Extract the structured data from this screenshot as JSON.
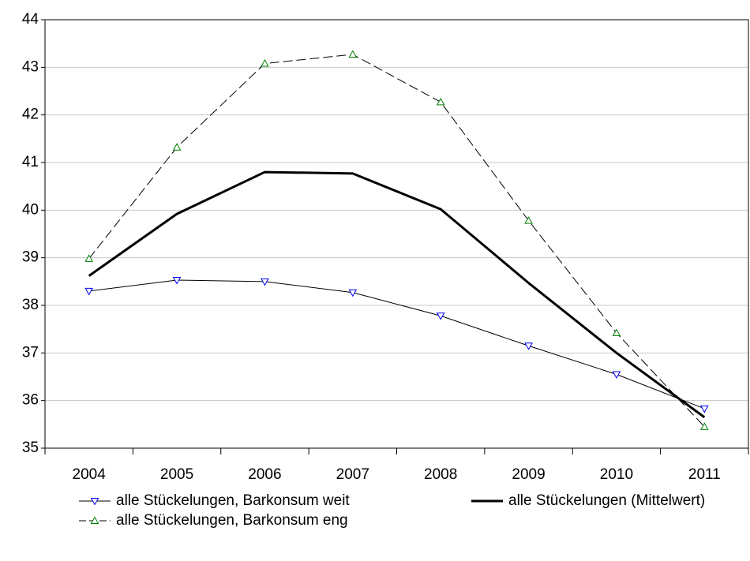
{
  "chart_data": {
    "type": "line",
    "categories": [
      "2004",
      "2005",
      "2006",
      "2007",
      "2008",
      "2009",
      "2010",
      "2011"
    ],
    "series": [
      {
        "name": "alle Stückelungen, Barkonsum weit",
        "color": "#000000",
        "marker_color": "#0000ff",
        "marker": "down-triangle",
        "dash": "solid",
        "width": 1,
        "values": [
          38.3,
          38.53,
          38.5,
          38.27,
          37.78,
          37.15,
          36.55,
          35.83
        ]
      },
      {
        "name": "alle Stückelungen (Mittelwert)",
        "color": "#000000",
        "marker": "none",
        "dash": "solid",
        "width": 3,
        "values": [
          38.62,
          39.92,
          40.8,
          40.77,
          40.02,
          38.47,
          37.0,
          35.65
        ]
      },
      {
        "name": "alle Stückelungen, Barkonsum eng",
        "color": "#000000",
        "marker_color": "#008000",
        "marker": "up-triangle",
        "dash": "dashed",
        "width": 1,
        "values": [
          38.98,
          41.32,
          43.08,
          43.27,
          42.27,
          39.78,
          37.42,
          35.45
        ]
      }
    ],
    "ylim": [
      35,
      44
    ],
    "yticks": [
      35,
      36,
      37,
      38,
      39,
      40,
      41,
      42,
      43,
      44
    ],
    "grid": true
  }
}
